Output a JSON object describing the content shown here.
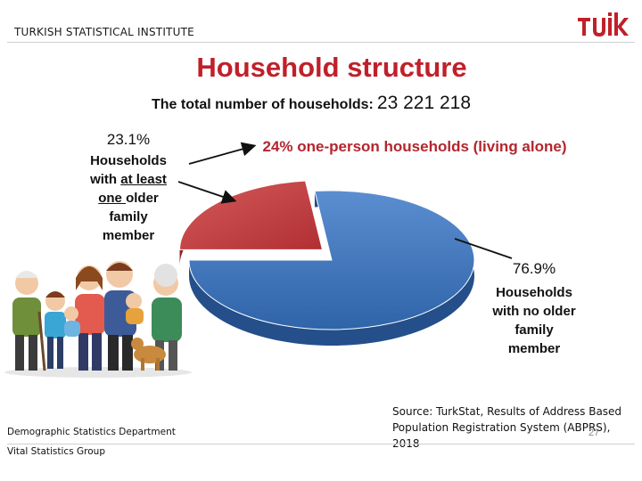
{
  "header": {
    "organization": "TURKISH STATISTICAL INSTITUTE",
    "logo": "tuik-logo"
  },
  "title": "Household structure",
  "total": {
    "label": "The total number of households:",
    "value": "23 221 218"
  },
  "callouts": {
    "older_pct": "23.1%",
    "older_desc_1": "Households",
    "older_desc_2_pre": "with ",
    "older_desc_2_u": "at least",
    "older_desc_3_u": "one ",
    "older_desc_3_post": "older",
    "older_desc_4": "family",
    "older_desc_5": "member",
    "single": "24% one-person households (living alone)",
    "no_older_pct": "76.9%",
    "no_older_desc_1": "Households",
    "no_older_desc_2": "with no older",
    "no_older_desc_3": "family",
    "no_older_desc_4": "member"
  },
  "chart_data": {
    "type": "pie",
    "slices": [
      {
        "name": "Households with at least one older family member",
        "value": 23.1,
        "color": "#c0393b"
      },
      {
        "name": "Households with no older family member",
        "value": 76.9,
        "color": "#3f74b8"
      }
    ]
  },
  "source": {
    "line1": "Source: TurkStat, Results of Address Based",
    "line2": "Population Registration System (ABPRS), 2018"
  },
  "footer": {
    "dept_1": "Demographic Statistics Department",
    "dept_2": "Vital Statistics Group",
    "page": "27"
  },
  "illustration": "family-illustration"
}
